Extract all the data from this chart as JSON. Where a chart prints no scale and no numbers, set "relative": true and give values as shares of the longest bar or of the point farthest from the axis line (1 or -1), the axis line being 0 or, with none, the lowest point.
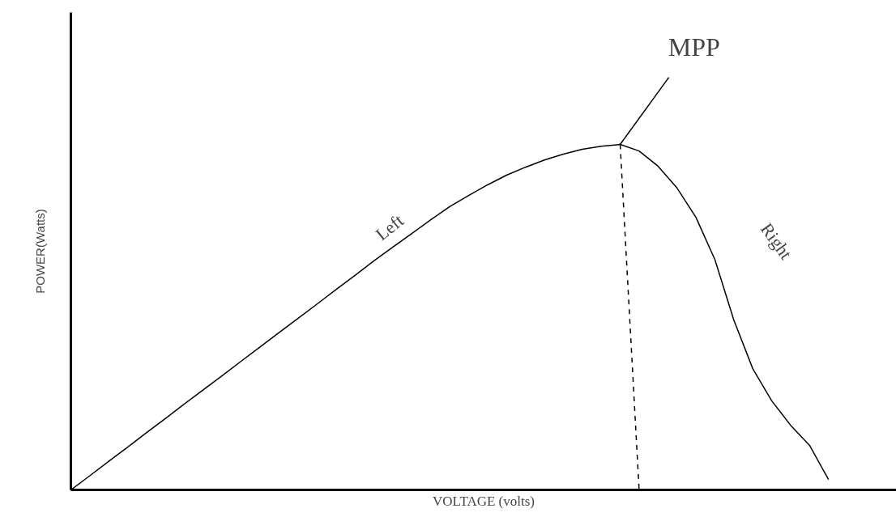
{
  "chart_data": {
    "type": "line",
    "relative": true,
    "xlabel": "VOLTAGE (volts)",
    "ylabel": "POWER(Watts)",
    "categories": [
      null,
      null,
      null,
      null,
      null,
      null,
      null,
      null,
      null,
      null,
      null,
      null,
      null,
      null,
      null,
      null,
      null,
      null,
      null,
      null,
      null,
      null,
      null,
      null,
      null,
      null,
      null,
      null,
      null,
      null,
      null,
      null,
      null,
      null,
      null,
      null,
      null,
      null,
      null,
      null,
      null
    ],
    "series": [
      {
        "color": "#000000",
        "values": [
          0,
          0.041,
          0.083,
          0.124,
          0.166,
          0.207,
          0.249,
          0.29,
          0.331,
          0.373,
          0.414,
          0.456,
          0.497,
          0.538,
          0.58,
          0.621,
          0.663,
          0.703,
          0.742,
          0.782,
          0.82,
          0.852,
          0.883,
          0.911,
          0.934,
          0.955,
          0.972,
          0.986,
          0.995,
          1,
          0.981,
          0.937,
          0.874,
          0.789,
          0.667,
          0.492,
          0.351,
          0.258,
          0.187,
          0.129,
          0.03
        ]
      },
      {
        "color": "#000000",
        "line_style": "dashed",
        "values": [
          null,
          null,
          null,
          null,
          null,
          null,
          null,
          null,
          null,
          null,
          null,
          null,
          null,
          null,
          null,
          null,
          null,
          null,
          null,
          null,
          null,
          null,
          null,
          null,
          null,
          null,
          null,
          null,
          null,
          1,
          0,
          null,
          null,
          null,
          null,
          null,
          null,
          null,
          null,
          null,
          null
        ]
      }
    ],
    "annotations": [
      "MPP",
      "Left",
      "Right"
    ],
    "line_style": "solid"
  }
}
